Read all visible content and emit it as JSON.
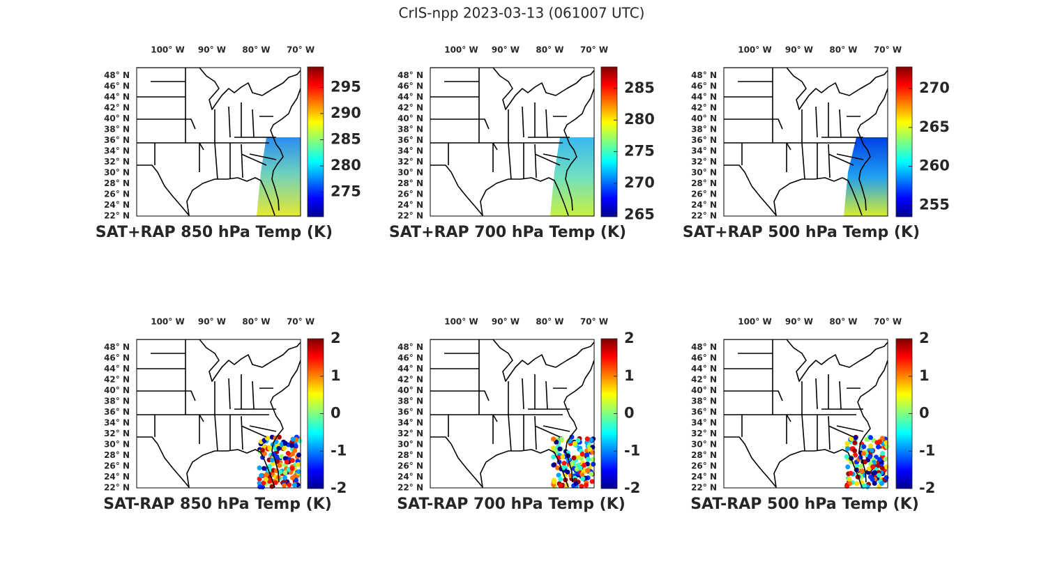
{
  "title": "CrIS-npp 2023-03-13 (061007 UTC)",
  "panels": [
    {
      "title": "SAT+RAP 850 hPa Temp (K)",
      "lonlim": [
        -107,
        -70
      ],
      "latlim": [
        22,
        49.5
      ],
      "lonticks": [
        {
          "value": -100,
          "label": "100° W"
        },
        {
          "value": -90,
          "label": "90° W"
        },
        {
          "value": -80,
          "label": "80° W"
        },
        {
          "value": -70,
          "label": "70° W"
        }
      ],
      "latticks": [
        {
          "value": 48,
          "label": "48° N"
        },
        {
          "value": 46,
          "label": "46° N"
        },
        {
          "value": 44,
          "label": "44° N"
        },
        {
          "value": 42,
          "label": "42° N"
        },
        {
          "value": 40,
          "label": "40° N"
        },
        {
          "value": 38,
          "label": "38° N"
        },
        {
          "value": 36,
          "label": "36° N"
        },
        {
          "value": 34,
          "label": "34° N"
        },
        {
          "value": 32,
          "label": "32° N"
        },
        {
          "value": 30,
          "label": "30° N"
        },
        {
          "value": 28,
          "label": "28° N"
        },
        {
          "value": 26,
          "label": "26° N"
        },
        {
          "value": 24,
          "label": "24° N"
        },
        {
          "value": 22,
          "label": "22° N"
        }
      ],
      "colorbar": {
        "lim": [
          270.3,
          298.9
        ],
        "ticks": [
          275,
          280,
          285,
          290,
          295
        ]
      }
    },
    {
      "title": "SAT+RAP 700 hPa Temp (K)",
      "lonlim": [
        -107,
        -70
      ],
      "latlim": [
        22,
        49.5
      ],
      "lonticks": [
        {
          "value": -100,
          "label": "100° W"
        },
        {
          "value": -90,
          "label": "90° W"
        },
        {
          "value": -80,
          "label": "80° W"
        },
        {
          "value": -70,
          "label": "70° W"
        }
      ],
      "latticks": [
        {
          "value": 48,
          "label": "48° N"
        },
        {
          "value": 46,
          "label": "46° N"
        },
        {
          "value": 44,
          "label": "44° N"
        },
        {
          "value": 42,
          "label": "42° N"
        },
        {
          "value": 40,
          "label": "40° N"
        },
        {
          "value": 38,
          "label": "38° N"
        },
        {
          "value": 36,
          "label": "36° N"
        },
        {
          "value": 34,
          "label": "34° N"
        },
        {
          "value": 32,
          "label": "32° N"
        },
        {
          "value": 30,
          "label": "30° N"
        },
        {
          "value": 28,
          "label": "28° N"
        },
        {
          "value": 26,
          "label": "26° N"
        },
        {
          "value": 24,
          "label": "24° N"
        },
        {
          "value": 22,
          "label": "22° N"
        }
      ],
      "colorbar": {
        "lim": [
          264.7,
          288.4
        ],
        "ticks": [
          265,
          270,
          275,
          280,
          285
        ]
      }
    },
    {
      "title": "SAT+RAP 500 hPa Temp (K)",
      "lonlim": [
        -107,
        -70
      ],
      "latlim": [
        22,
        49.5
      ],
      "lonticks": [
        {
          "value": -100,
          "label": "100° W"
        },
        {
          "value": -90,
          "label": "90° W"
        },
        {
          "value": -80,
          "label": "80° W"
        },
        {
          "value": -70,
          "label": "70° W"
        }
      ],
      "latticks": [
        {
          "value": 48,
          "label": "48° N"
        },
        {
          "value": 46,
          "label": "46° N"
        },
        {
          "value": 44,
          "label": "44° N"
        },
        {
          "value": 42,
          "label": "42° N"
        },
        {
          "value": 40,
          "label": "40° N"
        },
        {
          "value": 38,
          "label": "38° N"
        },
        {
          "value": 36,
          "label": "36° N"
        },
        {
          "value": 34,
          "label": "34° N"
        },
        {
          "value": 32,
          "label": "32° N"
        },
        {
          "value": 30,
          "label": "30° N"
        },
        {
          "value": 28,
          "label": "28° N"
        },
        {
          "value": 26,
          "label": "26° N"
        },
        {
          "value": 24,
          "label": "24° N"
        },
        {
          "value": 22,
          "label": "22° N"
        }
      ],
      "colorbar": {
        "lim": [
          253.5,
          272.8
        ],
        "ticks": [
          255,
          260,
          265,
          270
        ]
      }
    },
    {
      "title": "SAT-RAP 850 hPa Temp (K)",
      "lonlim": [
        -107,
        -70
      ],
      "latlim": [
        22,
        49.5
      ],
      "lonticks": [
        {
          "value": -100,
          "label": "100° W"
        },
        {
          "value": -90,
          "label": "90° W"
        },
        {
          "value": -80,
          "label": "80° W"
        },
        {
          "value": -70,
          "label": "70° W"
        }
      ],
      "latticks": [
        {
          "value": 48,
          "label": "48° N"
        },
        {
          "value": 46,
          "label": "46° N"
        },
        {
          "value": 44,
          "label": "44° N"
        },
        {
          "value": 42,
          "label": "42° N"
        },
        {
          "value": 40,
          "label": "40° N"
        },
        {
          "value": 38,
          "label": "38° N"
        },
        {
          "value": 36,
          "label": "36° N"
        },
        {
          "value": 34,
          "label": "34° N"
        },
        {
          "value": 32,
          "label": "32° N"
        },
        {
          "value": 30,
          "label": "30° N"
        },
        {
          "value": 28,
          "label": "28° N"
        },
        {
          "value": 26,
          "label": "26° N"
        },
        {
          "value": 24,
          "label": "24° N"
        },
        {
          "value": 22,
          "label": "22° N"
        }
      ],
      "colorbar": {
        "lim": [
          -2,
          2
        ],
        "ticks": [
          -2,
          -1,
          0,
          1,
          2
        ]
      }
    },
    {
      "title": "SAT-RAP 700 hPa Temp (K)",
      "lonlim": [
        -107,
        -70
      ],
      "latlim": [
        22,
        49.5
      ],
      "lonticks": [
        {
          "value": -100,
          "label": "100° W"
        },
        {
          "value": -90,
          "label": "90° W"
        },
        {
          "value": -80,
          "label": "80° W"
        },
        {
          "value": -70,
          "label": "70° W"
        }
      ],
      "latticks": [
        {
          "value": 48,
          "label": "48° N"
        },
        {
          "value": 46,
          "label": "46° N"
        },
        {
          "value": 44,
          "label": "44° N"
        },
        {
          "value": 42,
          "label": "42° N"
        },
        {
          "value": 40,
          "label": "40° N"
        },
        {
          "value": 38,
          "label": "38° N"
        },
        {
          "value": 36,
          "label": "36° N"
        },
        {
          "value": 34,
          "label": "34° N"
        },
        {
          "value": 32,
          "label": "32° N"
        },
        {
          "value": 30,
          "label": "30° N"
        },
        {
          "value": 28,
          "label": "28° N"
        },
        {
          "value": 26,
          "label": "26° N"
        },
        {
          "value": 24,
          "label": "24° N"
        },
        {
          "value": 22,
          "label": "22° N"
        }
      ],
      "colorbar": {
        "lim": [
          -2,
          2
        ],
        "ticks": [
          -2,
          -1,
          0,
          1,
          2
        ]
      }
    },
    {
      "title": "SAT-RAP 500 hPa Temp (K)",
      "lonlim": [
        -107,
        -70
      ],
      "latlim": [
        22,
        49.5
      ],
      "lonticks": [
        {
          "value": -100,
          "label": "100° W"
        },
        {
          "value": -90,
          "label": "90° W"
        },
        {
          "value": -80,
          "label": "80° W"
        },
        {
          "value": -70,
          "label": "70° W"
        }
      ],
      "latticks": [
        {
          "value": 48,
          "label": "48° N"
        },
        {
          "value": 46,
          "label": "46° N"
        },
        {
          "value": 44,
          "label": "44° N"
        },
        {
          "value": 42,
          "label": "42° N"
        },
        {
          "value": 40,
          "label": "40° N"
        },
        {
          "value": 38,
          "label": "38° N"
        },
        {
          "value": 36,
          "label": "36° N"
        },
        {
          "value": 34,
          "label": "34° N"
        },
        {
          "value": 32,
          "label": "32° N"
        },
        {
          "value": 30,
          "label": "30° N"
        },
        {
          "value": 28,
          "label": "28° N"
        },
        {
          "value": 26,
          "label": "26° N"
        },
        {
          "value": 24,
          "label": "24° N"
        },
        {
          "value": 22,
          "label": "22° N"
        }
      ],
      "colorbar": {
        "lim": [
          -2,
          2
        ],
        "ticks": [
          -2,
          -1,
          0,
          1,
          2
        ]
      }
    }
  ]
}
